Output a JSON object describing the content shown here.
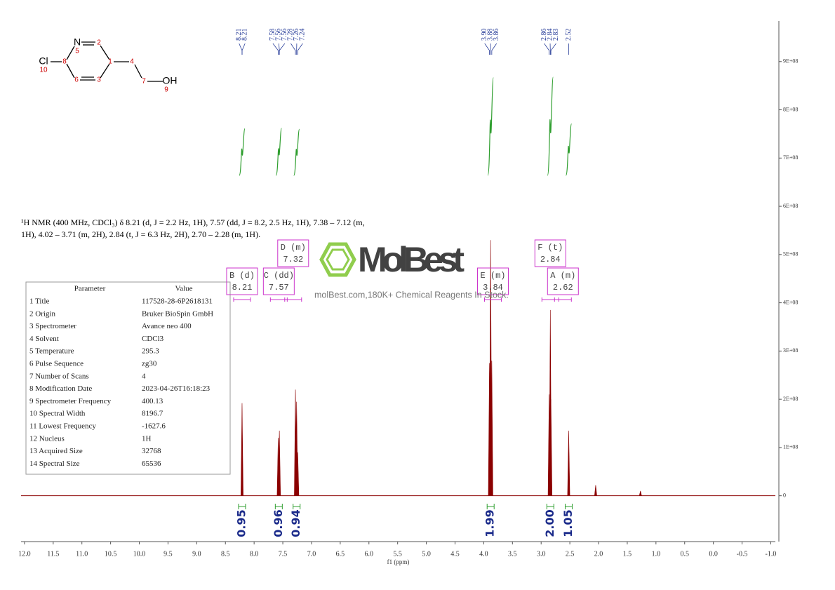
{
  "chart_data": {
    "type": "spectrum",
    "xlabel": "f1 (ppm)",
    "color": "#8b0000",
    "xlim": [
      12.06,
      -1.08
    ],
    "xticks": [
      {
        "value": 12,
        "label": "12.0"
      },
      11.5,
      {
        "value": 11,
        "label": "11.0"
      },
      10.5,
      {
        "value": 10,
        "label": "10.0"
      },
      9.5,
      {
        "value": 9,
        "label": "9.0"
      },
      8.5,
      {
        "value": 8,
        "label": "8.0"
      },
      7.5,
      {
        "value": 7,
        "label": "7.0"
      },
      6.5,
      {
        "value": 6,
        "label": "6.0"
      },
      5.5,
      {
        "value": 5,
        "label": "5.0"
      },
      4.5,
      {
        "value": 4,
        "label": "4.0"
      },
      3.5,
      {
        "value": 3,
        "label": "3.0"
      },
      2.5,
      {
        "value": 2,
        "label": "2.0"
      },
      1.5,
      {
        "value": 1,
        "label": "1.0"
      },
      0.5,
      {
        "value": 0,
        "label": "0.0"
      },
      -0.5,
      {
        "value": -1,
        "label": "-1.0"
      }
    ],
    "ylim": [
      -95000000,
      984000000
    ],
    "yticks": [
      0,
      {
        "value": 100000000,
        "label": "1E+08"
      },
      {
        "value": 200000000,
        "label": "2E+08"
      },
      {
        "value": 300000000,
        "label": "3E+08"
      },
      {
        "value": 400000000,
        "label": "4E+08"
      },
      {
        "value": 500000000,
        "label": "5E+08"
      },
      {
        "value": 600000000,
        "label": "6E+08"
      },
      {
        "value": 700000000,
        "label": "7E+08"
      },
      {
        "value": 800000000,
        "label": "8E+08"
      },
      {
        "value": 900000000,
        "label": "9E+08"
      }
    ],
    "x": [
      8.21,
      7.58,
      7.56,
      7.28,
      7.26,
      7.24,
      3.9,
      3.88,
      3.86,
      2.86,
      2.84,
      2.83,
      2.52,
      2.05,
      1.27
    ],
    "values": [
      192000000,
      120000000,
      135000000,
      220000000,
      195000000,
      90000000,
      275000000,
      530000000,
      280000000,
      210000000,
      385000000,
      200000000,
      135000000,
      22000000,
      10000000
    ],
    "peak_picks": [
      8.21,
      8.21,
      7.58,
      7.56,
      7.56,
      7.28,
      7.26,
      7.24,
      {
        "value": 3.9,
        "label": "3.90"
      },
      3.88,
      3.86,
      2.86,
      2.84,
      2.83,
      2.52
    ],
    "integrals": {
      "x": [
        8.21,
        7.57,
        7.26,
        3.88,
        2.84,
        2.52
      ],
      "values": [
        0.95,
        0.96,
        0.94,
        1.99,
        2,
        1.05
      ],
      "value_labels": [
        "0.95",
        "0.96",
        "0.94",
        "1.99",
        "2.00",
        "1.05"
      ]
    },
    "multiplets": [
      {
        "label": "B (d)",
        "shift": 8.21
      },
      {
        "label": "C (dd)",
        "shift": 7.57
      },
      {
        "label": "D (m)",
        "shift": 7.32
      },
      {
        "label": "E (m)",
        "shift": 3.84
      },
      {
        "label": "F (t)",
        "shift": 2.84
      },
      {
        "label": "A (m)",
        "shift": 2.62
      }
    ],
    "annotation": [
      "¹H NMR (400 MHz, CDCl₃) δ 8.21 (d, J = 2.2 Hz, 1H), 7.57 (dd, J = 8.2, 2.5 Hz, 1H), 7.38 – 7.12 (m,",
      "1H), 4.02 – 3.71 (m, 2H), 2.84 (t, J = 6.3 Hz, 2H), 2.70 – 2.28 (m, 1H)."
    ]
  },
  "structure": {
    "atoms": [
      "N",
      "2",
      "5",
      "Cl",
      "10",
      "8",
      "1",
      "4",
      "6",
      "3",
      "7",
      "OH",
      "9"
    ]
  },
  "parameters": {
    "header": [
      "Parameter",
      "Value"
    ],
    "rows": [
      [
        "1  Title",
        "117528-28-6P2618131"
      ],
      [
        "2  Origin",
        "Bruker BioSpin GmbH"
      ],
      [
        "3  Spectrometer",
        "Avance neo 400"
      ],
      [
        "4  Solvent",
        "CDCl3"
      ],
      [
        "5  Temperature",
        "295.3"
      ],
      [
        "6  Pulse Sequence",
        "zg30"
      ],
      [
        "7  Number of Scans",
        "4"
      ],
      [
        "8  Modification Date",
        "2023-04-26T16:18:23"
      ],
      [
        "9  Spectrometer Frequency",
        "400.13"
      ],
      [
        "10 Spectral Width",
        "8196.7"
      ],
      [
        "11 Lowest Frequency",
        "-1627.6"
      ],
      [
        "12 Nucleus",
        "1H"
      ],
      [
        "13 Acquired Size",
        "32768"
      ],
      [
        "14 Spectral Size",
        "65536"
      ]
    ]
  },
  "watermark": {
    "brand": "MolBest",
    "tagline": "molBest.com,180K+ Chemical Reagents In Stock."
  }
}
